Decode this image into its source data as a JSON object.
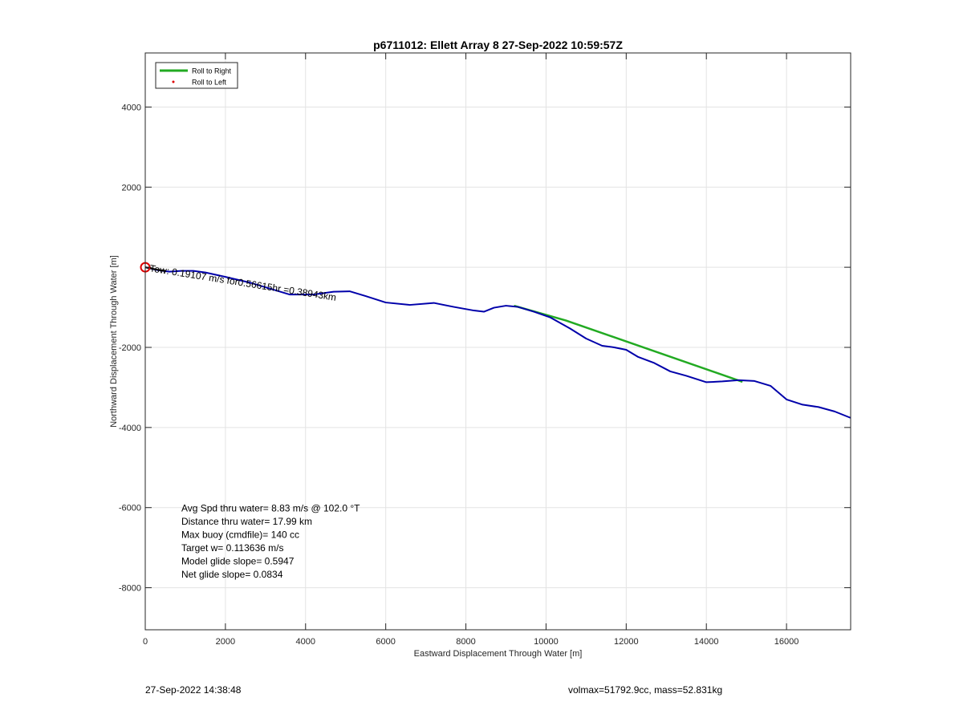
{
  "chart_data": {
    "type": "line",
    "title": "p6711012: Ellett Array 8 27-Sep-2022 10:59:57Z",
    "xlabel": "Eastward Displacement Through Water [m]",
    "ylabel": "Northward Displacement Through Water [m]",
    "xlim": [
      0,
      17600
    ],
    "ylim": [
      -9050,
      5350
    ],
    "x_ticks": [
      0,
      2000,
      4000,
      6000,
      8000,
      10000,
      12000,
      14000,
      16000
    ],
    "y_ticks": [
      -8000,
      -6000,
      -4000,
      -2000,
      0,
      2000,
      4000
    ],
    "y_tick_labels_shown": [
      "-8000",
      "-6000",
      "-4000",
      "-2000",
      "",
      "2000",
      "4000"
    ],
    "grid": true,
    "legend_position": "top-left",
    "legend": [
      {
        "label": "Roll to Right",
        "color": "#22aa22",
        "style": "line"
      },
      {
        "label": "Roll to Left",
        "color": "#dd0000",
        "style": "dot"
      }
    ],
    "series": [
      {
        "name": "Roll to Right",
        "color": "#22aa22",
        "x": [
          9200,
          10500,
          14900
        ],
        "y": [
          -960,
          -1330,
          -2860
        ]
      },
      {
        "color": "#0000aa",
        "x": [
          0,
          300,
          600,
          900,
          1200,
          1500,
          2000,
          2600,
          3200,
          3600,
          4200,
          4700,
          5100,
          5500,
          6000,
          6600,
          7200,
          7700,
          8200,
          8450,
          8700,
          9000,
          9300,
          9700,
          10100,
          10600,
          11000,
          11400,
          11700,
          12000,
          12300,
          12700,
          13100,
          13500,
          14000,
          14400,
          14800,
          15200,
          15600,
          16000,
          16400,
          16800,
          17200,
          17600
        ],
        "y": [
          0,
          -70,
          -110,
          -90,
          -90,
          -130,
          -240,
          -380,
          -560,
          -680,
          -680,
          -610,
          -600,
          -720,
          -880,
          -940,
          -890,
          -990,
          -1080,
          -1110,
          -1010,
          -960,
          -990,
          -1110,
          -1250,
          -1530,
          -1780,
          -1960,
          -2000,
          -2060,
          -2240,
          -2390,
          -2600,
          -2710,
          -2870,
          -2850,
          -2820,
          -2840,
          -2960,
          -3300,
          -3430,
          -3490,
          -3600,
          -3760
        ]
      }
    ],
    "annotations": [
      {
        "text": "Tow: 0.19107 m/s for0.56615hr =0.38943km",
        "x": 0,
        "y": 0,
        "rotation": 9
      },
      {
        "text": "Avg Spd thru water=  8.83 m/s @ 102.0 °T",
        "x": 900,
        "y": -6100
      },
      {
        "text": "Distance thru water= 17.99 km",
        "x": 900,
        "y": -6430
      },
      {
        "text": "Max buoy (cmdfile)= 140 cc",
        "x": 900,
        "y": -6760
      },
      {
        "text": "Target w= 0.113636 m/s",
        "x": 900,
        "y": -7090
      },
      {
        "text": "Model glide slope= 0.5947",
        "x": 900,
        "y": -7420
      },
      {
        "text": "Net glide slope= 0.0834",
        "x": 900,
        "y": -7750
      }
    ],
    "start_marker": {
      "x": 0,
      "y": 0,
      "color": "#dd0000"
    }
  },
  "footer": {
    "left": "27-Sep-2022 14:38:48",
    "right": "volmax=51792.9cc, mass=52.831kg"
  }
}
